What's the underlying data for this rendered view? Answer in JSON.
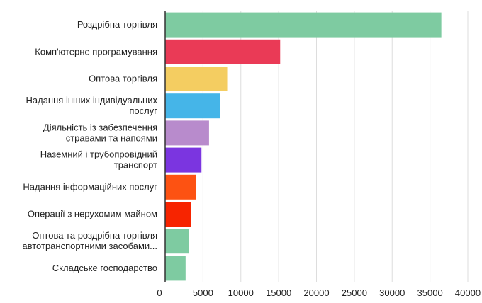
{
  "chart_data": {
    "type": "bar",
    "orientation": "horizontal",
    "categories": [
      [
        "Роздрібна торгівля"
      ],
      [
        "Комп'ютерне програмування"
      ],
      [
        "Оптова торгівля"
      ],
      [
        "Надання інших індивідуальних",
        "послуг"
      ],
      [
        "Діяльність із забезпечення",
        "стравами та напоями"
      ],
      [
        "Наземний і трубопровідний",
        "транспорт"
      ],
      [
        "Надання інформаційних послуг"
      ],
      [
        "Операції з нерухомим майном"
      ],
      [
        "Оптова та роздрібна торгівля",
        "автотранспортними засобами..."
      ],
      [
        "Складське господарство"
      ]
    ],
    "values": [
      36500,
      15200,
      8200,
      7300,
      5800,
      4800,
      4100,
      3400,
      3100,
      2700
    ],
    "colors": [
      "#7ecba1",
      "#ea3a56",
      "#f4cd61",
      "#45b5e8",
      "#b88bcc",
      "#7b35e0",
      "#fd5212",
      "#f72400",
      "#7ecba1",
      "#7ecba1"
    ],
    "xlim": [
      0,
      40000
    ],
    "xticks": [
      0,
      5000,
      10000,
      15000,
      20000,
      25000,
      30000,
      35000,
      40000
    ],
    "grid": true,
    "legend": "none"
  }
}
